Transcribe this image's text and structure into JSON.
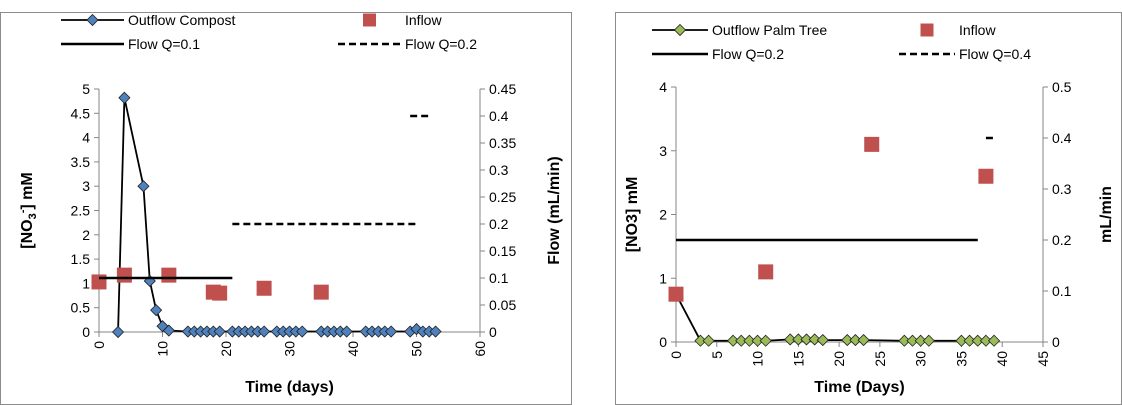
{
  "chart_data": [
    {
      "type": "scatter",
      "xlabel": "Time (days)",
      "ylabel_parts": [
        "[NO",
        "3",
        "-",
        "] mM"
      ],
      "y2label": "Flow (mL/min)",
      "xlim": [
        0,
        60
      ],
      "ylim": [
        0,
        5
      ],
      "y2lim": [
        0,
        0.45
      ],
      "xticks": [
        "0",
        "10",
        "20",
        "30",
        "40",
        "50",
        "60"
      ],
      "yticks": [
        "0",
        "0.5",
        "1",
        "1.5",
        "2",
        "2.5",
        "3",
        "3.5",
        "4",
        "4.5",
        "5"
      ],
      "y2ticks": [
        "0",
        "0.05",
        "0.1",
        "0.15",
        "0.2",
        "0.25",
        "0.3",
        "0.35",
        "0.4",
        "0.45"
      ],
      "legend": [
        "Outflow Compost",
        "Inflow",
        "Flow Q=0.1",
        "Flow Q=0.2"
      ],
      "series": [
        {
          "name": "Outflow Compost",
          "marker": "diamond",
          "color": "#4f81bd",
          "line": true,
          "x": [
            3,
            4,
            7,
            8,
            9,
            10,
            11,
            14,
            15,
            16,
            17,
            18,
            19,
            21,
            22,
            23,
            24,
            25,
            26,
            28,
            29,
            30,
            31,
            32,
            35,
            36,
            37,
            38,
            39,
            42,
            43,
            44,
            45,
            46,
            49,
            50,
            51,
            52,
            53
          ],
          "y": [
            0,
            4.82,
            3.0,
            1.05,
            0.45,
            0.12,
            0.03,
            0.01,
            0.01,
            0.01,
            0.01,
            0.01,
            0.01,
            0.01,
            0.01,
            0.01,
            0.01,
            0.01,
            0.01,
            0.01,
            0.01,
            0.01,
            0.01,
            0.01,
            0.01,
            0.01,
            0.01,
            0.01,
            0.01,
            0.01,
            0.01,
            0.01,
            0.01,
            0.01,
            0.01,
            0.06,
            0.01,
            0.01,
            0.01
          ]
        },
        {
          "name": "Inflow",
          "marker": "square",
          "color": "#c0504d",
          "x": [
            0,
            4,
            11,
            18,
            19,
            26,
            35
          ],
          "y": [
            1.03,
            1.17,
            1.17,
            0.82,
            0.8,
            0.9,
            0.82
          ]
        },
        {
          "name": "Flow Q=0.1",
          "axis": "right",
          "style": "solid",
          "x": [
            0,
            21
          ],
          "y": [
            0.1,
            0.1
          ]
        },
        {
          "name": "Flow Q=0.2",
          "axis": "right",
          "style": "dashed",
          "x": [
            21,
            50
          ],
          "y": [
            0.2,
            0.2
          ]
        },
        {
          "name": "Flow Q=0.4",
          "axis": "right",
          "style": "dashed",
          "x": [
            49,
            52
          ],
          "y": [
            0.4,
            0.4
          ]
        }
      ]
    },
    {
      "type": "scatter",
      "xlabel": "Time (Days)",
      "ylabel": "[NO3] mM",
      "y2label": "mL/min",
      "xlim": [
        0,
        45
      ],
      "ylim": [
        0,
        4
      ],
      "y2lim": [
        0,
        0.5
      ],
      "xticks": [
        "0",
        "5",
        "10",
        "15",
        "20",
        "25",
        "30",
        "35",
        "40",
        "45"
      ],
      "yticks": [
        "0",
        "1",
        "2",
        "3",
        "4"
      ],
      "y2ticks": [
        "0",
        "0.1",
        "0.2",
        "0.3",
        "0.4",
        "0.5"
      ],
      "legend": [
        "Outflow Palm Tree",
        "Inflow",
        "Flow Q=0.2",
        "Flow Q=0.4"
      ],
      "series": [
        {
          "name": "Outflow Palm Tree",
          "marker": "diamond",
          "color": "#9bbb59",
          "line": true,
          "x": [
            0,
            3,
            4,
            7,
            8,
            9,
            10,
            11,
            14,
            15,
            16,
            17,
            18,
            21,
            22,
            23,
            28,
            29,
            30,
            31,
            35,
            36,
            37,
            38,
            39
          ],
          "y": [
            0.75,
            0.02,
            0.02,
            0.02,
            0.02,
            0.02,
            0.02,
            0.02,
            0.04,
            0.04,
            0.04,
            0.04,
            0.03,
            0.03,
            0.03,
            0.03,
            0.02,
            0.02,
            0.02,
            0.02,
            0.02,
            0.02,
            0.02,
            0.02,
            0.02
          ]
        },
        {
          "name": "Inflow",
          "marker": "square",
          "color": "#c0504d",
          "x": [
            0,
            11,
            24,
            38
          ],
          "y": [
            0.75,
            1.1,
            3.1,
            2.6
          ]
        },
        {
          "name": "Flow Q=0.2",
          "axis": "right",
          "style": "solid",
          "x": [
            0,
            37
          ],
          "y": [
            0.2,
            0.2
          ]
        },
        {
          "name": "Flow Q=0.4",
          "axis": "right",
          "style": "dashed",
          "x": [
            38,
            39
          ],
          "y": [
            0.4,
            0.4
          ]
        }
      ]
    }
  ]
}
